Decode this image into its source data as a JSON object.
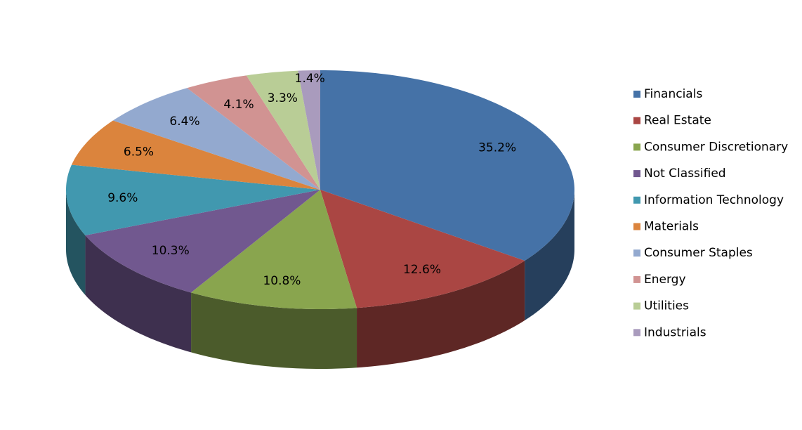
{
  "chart_data": {
    "type": "pie",
    "categories": [
      "Financials",
      "Real Estate",
      "Consumer Discretionary",
      "Not Classified",
      "Information Technology",
      "Materials",
      "Consumer Staples",
      "Energy",
      "Utilities",
      "Industrials"
    ],
    "values": [
      35.2,
      12.6,
      10.8,
      10.3,
      9.6,
      6.5,
      6.4,
      4.1,
      3.3,
      1.4
    ],
    "value_labels": [
      "35.2%",
      "12.6%",
      "10.8%",
      "10.3%",
      "9.6%",
      "6.5%",
      "6.4%",
      "4.1%",
      "3.3%",
      "1.4%"
    ],
    "colors": [
      "#4572a7",
      "#aa4643",
      "#89a54e",
      "#71588f",
      "#4198af",
      "#db843d",
      "#93a9cf",
      "#d19392",
      "#b9cd96",
      "#a99bbd"
    ],
    "legend": "right"
  }
}
